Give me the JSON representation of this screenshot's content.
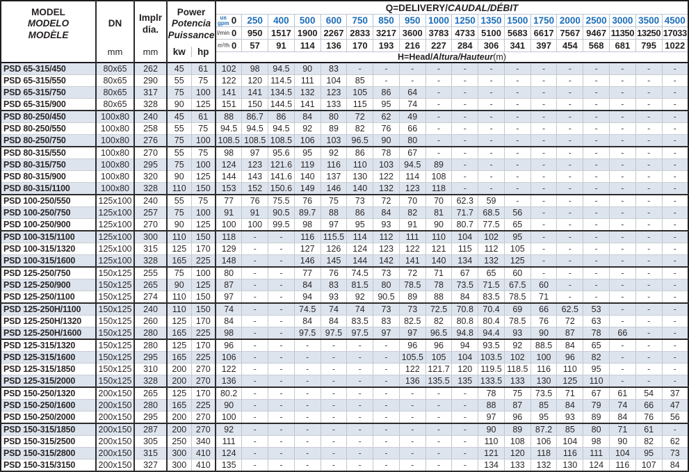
{
  "colors": {
    "accent_blue": "#1c6db8",
    "row_stripe": "#dde4ee",
    "grid_light": "#c0c6d0",
    "grid_dark": "#1c1c1c"
  },
  "table": {
    "header": {
      "model_lines": [
        "MODEL",
        "MODELO",
        "MODÈLE"
      ],
      "dn_label": "DN",
      "implr_lines": [
        "Implr",
        "dia."
      ],
      "power_lines": [
        "Power",
        "Potencia",
        "Puissance"
      ],
      "unit_mm_dn": "mm",
      "unit_mm_implr": "mm",
      "unit_kw": "kw",
      "unit_hp": "hp",
      "q_title_main": "Q=DELIVERY/",
      "q_title_intl": "CAUDAL/DÉBIT",
      "h_title_main": "H=Head/",
      "h_title_intl": "Altura/Hauteur",
      "h_title_unit": "(m)",
      "flow_rows": [
        {
          "id": "usgpm",
          "label_lines": [
            "us",
            "gpm"
          ],
          "zero": "0",
          "values": [
            "250",
            "400",
            "500",
            "600",
            "750",
            "850",
            "950",
            "1000",
            "1250",
            "1350",
            "1500",
            "1750",
            "2000",
            "2500",
            "3000",
            "3500",
            "4500"
          ]
        },
        {
          "id": "lmin",
          "label_lines": [
            "l/min"
          ],
          "zero": "0",
          "values": [
            "950",
            "1517",
            "1900",
            "2267",
            "2833",
            "3217",
            "3600",
            "3783",
            "4733",
            "5100",
            "5683",
            "6617",
            "7567",
            "9467",
            "11350",
            "13250",
            "17033"
          ]
        },
        {
          "id": "m3h",
          "label_lines": [
            "m³/h"
          ],
          "zero": "0",
          "values": [
            "57",
            "91",
            "114",
            "136",
            "170",
            "193",
            "216",
            "227",
            "284",
            "306",
            "341",
            "397",
            "454",
            "568",
            "681",
            "795",
            "1022"
          ]
        }
      ]
    },
    "rows": [
      {
        "model": "PSD 65-315/450",
        "dn": "80x65",
        "dia": "262",
        "kw": "45",
        "hp": "61",
        "group_end": false,
        "head": [
          "102",
          "98",
          "94.5",
          "90",
          "83",
          "-",
          "-",
          "-",
          "-",
          "-",
          "-",
          "-",
          "-",
          "-",
          "-",
          "-",
          "-",
          "-"
        ]
      },
      {
        "model": "PSD 65-315/550",
        "dn": "80x65",
        "dia": "290",
        "kw": "55",
        "hp": "75",
        "group_end": false,
        "head": [
          "122",
          "120",
          "114.5",
          "111",
          "104",
          "85",
          "-",
          "-",
          "-",
          "-",
          "-",
          "-",
          "-",
          "-",
          "-",
          "-",
          "-",
          "-"
        ]
      },
      {
        "model": "PSD 65-315/750",
        "dn": "80x65",
        "dia": "317",
        "kw": "75",
        "hp": "100",
        "group_end": false,
        "head": [
          "141",
          "141",
          "134.5",
          "132",
          "123",
          "105",
          "86",
          "64",
          "-",
          "-",
          "-",
          "-",
          "-",
          "-",
          "-",
          "-",
          "-",
          "-"
        ]
      },
      {
        "model": "PSD 65-315/900",
        "dn": "80x65",
        "dia": "328",
        "kw": "90",
        "hp": "125",
        "group_end": true,
        "head": [
          "151",
          "150",
          "144.5",
          "141",
          "133",
          "115",
          "95",
          "74",
          "-",
          "-",
          "-",
          "-",
          "-",
          "-",
          "-",
          "-",
          "-",
          "-"
        ]
      },
      {
        "model": "PSD 80-250/450",
        "dn": "100x80",
        "dia": "240",
        "kw": "45",
        "hp": "61",
        "group_end": false,
        "head": [
          "88",
          "86.7",
          "86",
          "84",
          "80",
          "72",
          "62",
          "49",
          "-",
          "-",
          "-",
          "-",
          "-",
          "-",
          "-",
          "-",
          "-",
          "-"
        ]
      },
      {
        "model": "PSD 80-250/550",
        "dn": "100x80",
        "dia": "258",
        "kw": "55",
        "hp": "75",
        "group_end": false,
        "head": [
          "94.5",
          "94.5",
          "94.5",
          "92",
          "89",
          "82",
          "76",
          "66",
          "-",
          "-",
          "-",
          "-",
          "-",
          "-",
          "-",
          "-",
          "-",
          "-"
        ]
      },
      {
        "model": "PSD 80-250/750",
        "dn": "100x80",
        "dia": "276",
        "kw": "75",
        "hp": "100",
        "group_end": true,
        "head": [
          "108.5",
          "108.5",
          "108.5",
          "106",
          "103",
          "96.5",
          "90",
          "80",
          "-",
          "-",
          "-",
          "-",
          "-",
          "-",
          "-",
          "-",
          "-",
          "-"
        ]
      },
      {
        "model": "PSD 80-315/550",
        "dn": "100x80",
        "dia": "270",
        "kw": "55",
        "hp": "75",
        "group_end": false,
        "head": [
          "98",
          "97",
          "95.6",
          "95",
          "92",
          "86",
          "78",
          "67",
          "-",
          "-",
          "-",
          "-",
          "-",
          "-",
          "-",
          "-",
          "-",
          "-"
        ]
      },
      {
        "model": "PSD 80-315/750",
        "dn": "100x80",
        "dia": "295",
        "kw": "75",
        "hp": "100",
        "group_end": false,
        "head": [
          "124",
          "123",
          "121.6",
          "119",
          "116",
          "110",
          "103",
          "94.5",
          "89",
          "-",
          "-",
          "-",
          "-",
          "-",
          "-",
          "-",
          "-",
          "-"
        ]
      },
      {
        "model": "PSD 80-315/900",
        "dn": "100x80",
        "dia": "320",
        "kw": "90",
        "hp": "125",
        "group_end": false,
        "head": [
          "144",
          "143",
          "141.6",
          "140",
          "137",
          "130",
          "122",
          "114",
          "108",
          "-",
          "-",
          "-",
          "-",
          "-",
          "-",
          "-",
          "-",
          "-"
        ]
      },
      {
        "model": "PSD 80-315/1100",
        "dn": "100x80",
        "dia": "328",
        "kw": "110",
        "hp": "150",
        "group_end": true,
        "head": [
          "153",
          "152",
          "150.6",
          "149",
          "146",
          "140",
          "132",
          "123",
          "118",
          "-",
          "-",
          "-",
          "-",
          "-",
          "-",
          "-",
          "-",
          "-"
        ]
      },
      {
        "model": "PSD 100-250/550",
        "dn": "125x100",
        "dia": "240",
        "kw": "55",
        "hp": "75",
        "group_end": false,
        "head": [
          "77",
          "76",
          "75.5",
          "76",
          "75",
          "73",
          "72",
          "70",
          "70",
          "62.3",
          "59",
          "-",
          "-",
          "-",
          "-",
          "-",
          "-",
          "-"
        ]
      },
      {
        "model": "PSD 100-250/750",
        "dn": "125x100",
        "dia": "257",
        "kw": "75",
        "hp": "100",
        "group_end": false,
        "head": [
          "91",
          "91",
          "90.5",
          "89.7",
          "88",
          "86",
          "84",
          "82",
          "81",
          "71.7",
          "68.5",
          "56",
          "-",
          "-",
          "-",
          "-",
          "-",
          "-"
        ]
      },
      {
        "model": "PSD 100-250/900",
        "dn": "125x100",
        "dia": "270",
        "kw": "90",
        "hp": "125",
        "group_end": true,
        "head": [
          "100",
          "100",
          "99.5",
          "98",
          "97",
          "95",
          "93",
          "91",
          "90",
          "80.7",
          "77.5",
          "65",
          "-",
          "-",
          "-",
          "-",
          "-",
          "-"
        ]
      },
      {
        "model": "PSD 100-315/1100",
        "dn": "125x100",
        "dia": "300",
        "kw": "110",
        "hp": "150",
        "group_end": false,
        "head": [
          "118",
          "-",
          "-",
          "116",
          "115.5",
          "114",
          "112",
          "111",
          "110",
          "104",
          "102",
          "95",
          "-",
          "-",
          "-",
          "-",
          "-",
          "-"
        ]
      },
      {
        "model": "PSD 100-315/1320",
        "dn": "125x100",
        "dia": "315",
        "kw": "125",
        "hp": "170",
        "group_end": false,
        "head": [
          "129",
          "-",
          "-",
          "127",
          "126",
          "124",
          "123",
          "122",
          "121",
          "115",
          "112",
          "105",
          "-",
          "-",
          "-",
          "-",
          "-",
          "-"
        ]
      },
      {
        "model": "PSD 100-315/1600",
        "dn": "125x100",
        "dia": "328",
        "kw": "165",
        "hp": "225",
        "group_end": true,
        "head": [
          "148",
          "-",
          "-",
          "146",
          "145",
          "144",
          "142",
          "141",
          "140",
          "134",
          "132",
          "125",
          "-",
          "-",
          "-",
          "-",
          "-",
          "-"
        ]
      },
      {
        "model": "PSD 125-250/750",
        "dn": "150x125",
        "dia": "255",
        "kw": "75",
        "hp": "100",
        "group_end": false,
        "head": [
          "80",
          "-",
          "-",
          "77",
          "76",
          "74.5",
          "73",
          "72",
          "71",
          "67",
          "65",
          "60",
          "-",
          "-",
          "-",
          "-",
          "-",
          "-"
        ]
      },
      {
        "model": "PSD 125-250/900",
        "dn": "150x125",
        "dia": "265",
        "kw": "90",
        "hp": "125",
        "group_end": false,
        "head": [
          "87",
          "-",
          "-",
          "84",
          "83",
          "81.5",
          "80",
          "78.5",
          "78",
          "73.5",
          "71.5",
          "67.5",
          "60",
          "-",
          "-",
          "-",
          "-",
          "-"
        ]
      },
      {
        "model": "PSD 125-250/1100",
        "dn": "150x125",
        "dia": "274",
        "kw": "110",
        "hp": "150",
        "group_end": true,
        "head": [
          "97",
          "-",
          "-",
          "94",
          "93",
          "92",
          "90.5",
          "89",
          "88",
          "84",
          "83.5",
          "78.5",
          "71",
          "-",
          "-",
          "-",
          "-",
          "-"
        ]
      },
      {
        "model": "PSD 125-250H/1100",
        "dn": "150x125",
        "dia": "240",
        "kw": "110",
        "hp": "150",
        "group_end": false,
        "head": [
          "74",
          "-",
          "-",
          "74.5",
          "74",
          "74",
          "73",
          "73",
          "72.5",
          "70.8",
          "70.4",
          "69",
          "66",
          "62.5",
          "53",
          "-",
          "-",
          "-"
        ]
      },
      {
        "model": "PSD 125-250H/1320",
        "dn": "150x125",
        "dia": "260",
        "kw": "125",
        "hp": "170",
        "group_end": false,
        "head": [
          "84",
          "-",
          "-",
          "84",
          "84",
          "83.5",
          "83",
          "82.5",
          "82",
          "80.8",
          "80.4",
          "78.5",
          "76",
          "72",
          "63",
          "-",
          "-",
          "-"
        ]
      },
      {
        "model": "PSD 125-250H/1600",
        "dn": "150x125",
        "dia": "280",
        "kw": "165",
        "hp": "225",
        "group_end": true,
        "head": [
          "98",
          "-",
          "-",
          "97.5",
          "97.5",
          "97.5",
          "97",
          "97",
          "96.5",
          "94.8",
          "94.4",
          "93",
          "90",
          "87",
          "78",
          "66",
          "-",
          "-"
        ]
      },
      {
        "model": "PSD 125-315/1320",
        "dn": "150x125",
        "dia": "280",
        "kw": "125",
        "hp": "170",
        "group_end": false,
        "head": [
          "96",
          "-",
          "-",
          "-",
          "-",
          "-",
          "-",
          "96",
          "96",
          "94",
          "93.5",
          "92",
          "88.5",
          "84",
          "65",
          "-",
          "-",
          "-"
        ]
      },
      {
        "model": "PSD 125-315/1600",
        "dn": "150x125",
        "dia": "295",
        "kw": "165",
        "hp": "225",
        "group_end": false,
        "head": [
          "106",
          "-",
          "-",
          "-",
          "-",
          "-",
          "-",
          "105.5",
          "105",
          "104",
          "103.5",
          "102",
          "100",
          "96",
          "82",
          "-",
          "-",
          "-"
        ]
      },
      {
        "model": "PSD 125-315/1850",
        "dn": "150x125",
        "dia": "310",
        "kw": "200",
        "hp": "270",
        "group_end": false,
        "head": [
          "122",
          "-",
          "-",
          "-",
          "-",
          "-",
          "-",
          "122",
          "121.7",
          "120",
          "119.5",
          "118.5",
          "116",
          "110",
          "95",
          "-",
          "-",
          "-"
        ]
      },
      {
        "model": "PSD 125-315/2000",
        "dn": "150x125",
        "dia": "328",
        "kw": "200",
        "hp": "270",
        "group_end": true,
        "head": [
          "136",
          "-",
          "-",
          "-",
          "-",
          "-",
          "-",
          "136",
          "135.5",
          "135",
          "133.5",
          "133",
          "130",
          "125",
          "110",
          "-",
          "-",
          "-"
        ]
      },
      {
        "model": "PSD 150-250/1320",
        "dn": "200x150",
        "dia": "265",
        "kw": "125",
        "hp": "170",
        "group_end": false,
        "head": [
          "80.2",
          "-",
          "-",
          "-",
          "-",
          "-",
          "-",
          "-",
          "-",
          "-",
          "78",
          "75",
          "73.5",
          "71",
          "67",
          "61",
          "54",
          "37"
        ]
      },
      {
        "model": "PSD 150-250/1600",
        "dn": "200x150",
        "dia": "280",
        "kw": "165",
        "hp": "225",
        "group_end": false,
        "head": [
          "90",
          "-",
          "-",
          "-",
          "-",
          "-",
          "-",
          "-",
          "-",
          "-",
          "88",
          "87",
          "85",
          "84",
          "79",
          "74",
          "66",
          "47"
        ]
      },
      {
        "model": "PSD 150-250/2000",
        "dn": "200x150",
        "dia": "295",
        "kw": "200",
        "hp": "270",
        "group_end": true,
        "head": [
          "100",
          "-",
          "-",
          "-",
          "-",
          "-",
          "-",
          "-",
          "-",
          "-",
          "97",
          "96",
          "95",
          "93",
          "89",
          "84",
          "76",
          "56"
        ]
      },
      {
        "model": "PSD 150-315/1850",
        "dn": "200x150",
        "dia": "287",
        "kw": "200",
        "hp": "270",
        "group_end": false,
        "head": [
          "92",
          "-",
          "-",
          "-",
          "-",
          "-",
          "-",
          "-",
          "-",
          "-",
          "90",
          "89",
          "87.2",
          "85",
          "80",
          "71",
          "61",
          "-"
        ]
      },
      {
        "model": "PSD 150-315/2500",
        "dn": "200x150",
        "dia": "305",
        "kw": "250",
        "hp": "340",
        "group_end": false,
        "head": [
          "111",
          "-",
          "-",
          "-",
          "-",
          "-",
          "-",
          "-",
          "-",
          "-",
          "110",
          "108",
          "106",
          "104",
          "98",
          "90",
          "82",
          "62"
        ]
      },
      {
        "model": "PSD 150-315/2800",
        "dn": "200x150",
        "dia": "315",
        "kw": "300",
        "hp": "410",
        "group_end": false,
        "head": [
          "124",
          "-",
          "-",
          "-",
          "-",
          "-",
          "-",
          "-",
          "-",
          "-",
          "121",
          "120",
          "118",
          "116",
          "111",
          "104",
          "95",
          "73"
        ]
      },
      {
        "model": "PSD 150-315/3150",
        "dn": "200x150",
        "dia": "327",
        "kw": "300",
        "hp": "410",
        "group_end": true,
        "head": [
          "135",
          "-",
          "-",
          "-",
          "-",
          "-",
          "-",
          "-",
          "-",
          "-",
          "134",
          "133",
          "132",
          "130",
          "124",
          "116",
          "107",
          "84"
        ]
      }
    ]
  }
}
